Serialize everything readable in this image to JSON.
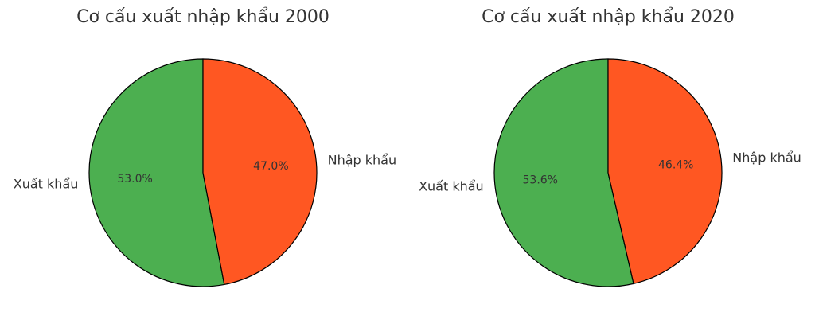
{
  "chart_data": [
    {
      "type": "pie",
      "title": "Cơ cấu xuất nhập khẩu 2000",
      "categories": [
        "Xuất khẩu",
        "Nhập khẩu"
      ],
      "values": [
        53.0,
        47.0
      ],
      "value_labels": [
        "53.0%",
        "47.0%"
      ],
      "colors": [
        "#4caf50",
        "#ff5722"
      ]
    },
    {
      "type": "pie",
      "title": "Cơ cấu xuất nhập khẩu 2020",
      "categories": [
        "Xuất khẩu",
        "Nhập khẩu"
      ],
      "values": [
        53.6,
        46.4
      ],
      "value_labels": [
        "53.6%",
        "46.4%"
      ],
      "colors": [
        "#4caf50",
        "#ff5722"
      ]
    }
  ]
}
